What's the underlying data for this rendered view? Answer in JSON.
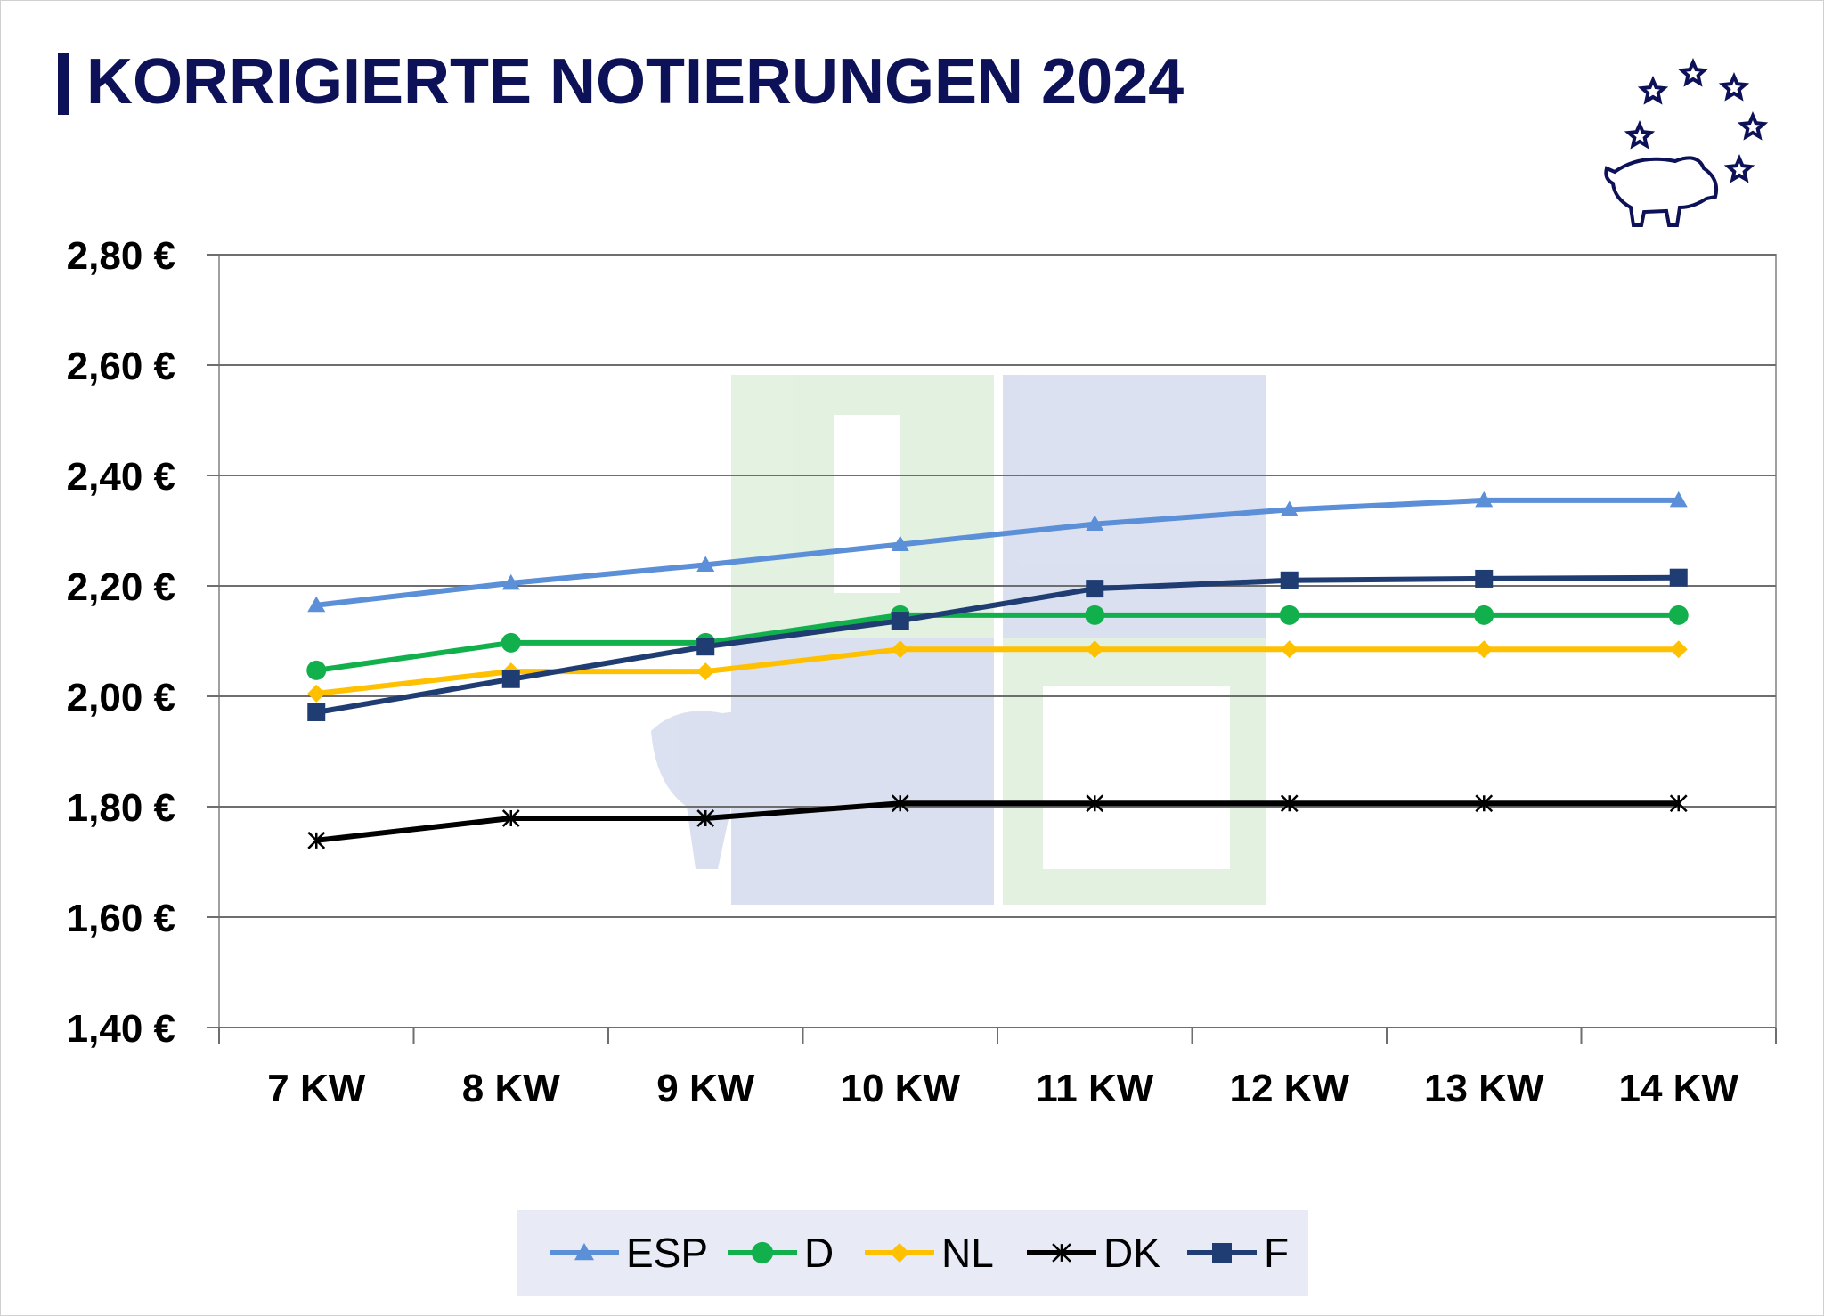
{
  "title": "KORRIGIERTE NOTIERUNGEN 2024",
  "chart_data": {
    "type": "line",
    "title": "KORRIGIERTE NOTIERUNGEN 2024",
    "xlabel": "",
    "ylabel": "",
    "categories": [
      "7 KW",
      "8 KW",
      "9 KW",
      "10 KW",
      "11 KW",
      "12 KW",
      "13 KW",
      "14 KW"
    ],
    "ylim": [
      1.4,
      2.8
    ],
    "yticks": [
      {
        "value": 2.8,
        "label": "2,80 €"
      },
      {
        "value": 2.6,
        "label": "2,60 €"
      },
      {
        "value": 2.4,
        "label": "2,40 €"
      },
      {
        "value": 2.2,
        "label": "2,20 €"
      },
      {
        "value": 2.0,
        "label": "2,00 €"
      },
      {
        "value": 1.8,
        "label": "1,80 €"
      },
      {
        "value": 1.6,
        "label": "1,60 €"
      },
      {
        "value": 1.4,
        "label": "1,40 €"
      }
    ],
    "grid": "horizontal",
    "legend_position": "bottom",
    "series": [
      {
        "name": "ESP",
        "color": "#5b8fd8",
        "marker": "triangle",
        "values": [
          2.165,
          2.205,
          2.238,
          2.275,
          2.312,
          2.338,
          2.355,
          2.355
        ]
      },
      {
        "name": "D",
        "color": "#12b04c",
        "marker": "circle",
        "values": [
          2.047,
          2.097,
          2.097,
          2.147,
          2.147,
          2.147,
          2.147,
          2.147
        ]
      },
      {
        "name": "NL",
        "color": "#ffc000",
        "marker": "diamond",
        "values": [
          2.005,
          2.045,
          2.045,
          2.085,
          2.085,
          2.085,
          2.085,
          2.085
        ]
      },
      {
        "name": "DK",
        "color": "#000000",
        "marker": "star",
        "values": [
          1.739,
          1.779,
          1.779,
          1.806,
          1.806,
          1.806,
          1.806,
          1.806
        ]
      },
      {
        "name": "F",
        "color": "#1f3d73",
        "marker": "square",
        "values": [
          1.971,
          2.031,
          2.09,
          2.137,
          2.195,
          2.21,
          2.213,
          2.215
        ]
      }
    ]
  }
}
